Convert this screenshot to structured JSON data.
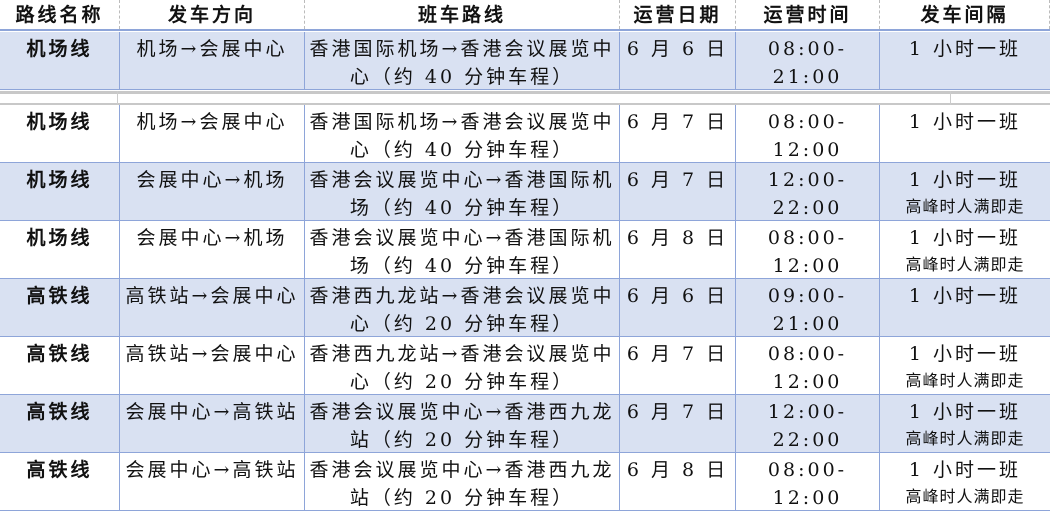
{
  "headers": [
    "路线名称",
    "发车方向",
    "班车路线",
    "运营日期",
    "运营时间",
    "发车间隔"
  ],
  "rows": [
    {
      "name": "机场线",
      "direction": "机场→会展中心",
      "route": "香港国际机场→香港会议展览中心（约 40 分钟车程）",
      "date": "6 月 6 日",
      "time": "08:00-21:00",
      "interval": "1 小时一班",
      "note": ""
    },
    {
      "name": "机场线",
      "direction": "机场→会展中心",
      "route": "香港国际机场→香港会议展览中心（约 40 分钟车程）",
      "date": "6 月 7 日",
      "time": "08:00-12:00",
      "interval": "1 小时一班",
      "note": ""
    },
    {
      "name": "机场线",
      "direction": "会展中心→机场",
      "route": "香港会议展览中心→香港国际机场（约 40 分钟车程）",
      "date": "6 月 7 日",
      "time": "12:00-22:00",
      "interval": "1 小时一班",
      "note": "高峰时人满即走"
    },
    {
      "name": "机场线",
      "direction": "会展中心→机场",
      "route": "香港会议展览中心→香港国际机场（约 40 分钟车程）",
      "date": "6 月 8 日",
      "time": "08:00-12:00",
      "interval": "1 小时一班",
      "note": "高峰时人满即走"
    },
    {
      "name": "高铁线",
      "direction": "高铁站→会展中心",
      "route": "香港西九龙站→香港会议展览中心（约 20 分钟车程）",
      "date": "6 月 6 日",
      "time": "09:00-21:00",
      "interval": "1 小时一班",
      "note": ""
    },
    {
      "name": "高铁线",
      "direction": "高铁站→会展中心",
      "route": "香港西九龙站→香港会议展览中心（约 20 分钟车程）",
      "date": "6 月 7 日",
      "time": "08:00-12:00",
      "interval": "1 小时一班",
      "note": "高峰时人满即走"
    },
    {
      "name": "高铁线",
      "direction": "会展中心→高铁站",
      "route": "香港会议展览中心→香港西九龙站（约 20 分钟车程）",
      "date": "6 月 7 日",
      "time": "12:00-22:00",
      "interval": "1 小时一班",
      "note": "高峰时人满即走"
    },
    {
      "name": "高铁线",
      "direction": "会展中心→高铁站",
      "route": "香港会议展览中心→香港西九龙站（约 20 分钟车程）",
      "date": "6 月 8 日",
      "time": "08:00-12:00",
      "interval": "1 小时一班",
      "note": "高峰时人满即走"
    }
  ],
  "colors": {
    "shade": "#d9e1f2",
    "border": "#8ea5d9"
  }
}
